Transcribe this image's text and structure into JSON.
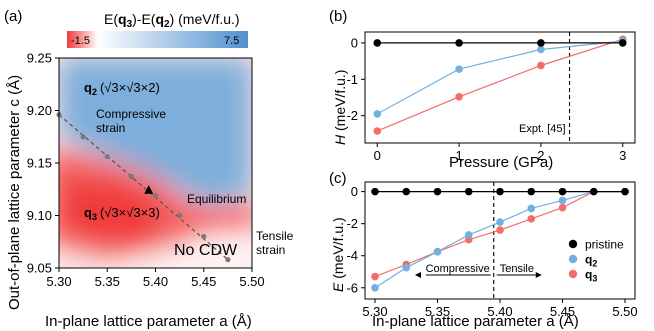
{
  "chart_data": [
    {
      "panel": "(a)",
      "type": "heatmap",
      "xlabel": "In-plane lattice parameter a (Å)",
      "ylabel": "Out-of-plane lattice parameter c (Å)",
      "xlim": [
        5.3,
        5.5
      ],
      "ylim": [
        9.05,
        9.25
      ],
      "xticks": [
        "5.30",
        "5.35",
        "5.40",
        "5.45",
        "5.50"
      ],
      "yticks": [
        "9.05",
        "9.10",
        "9.15",
        "9.20",
        "9.25"
      ],
      "colorbar": {
        "label_prefix": "E(",
        "label_q3": "q",
        "label_q3_sub": "3",
        "label_mid": ")-E(",
        "label_q2": "q",
        "label_q2_sub": "2",
        "label_suffix": ") (meV/f.u.)",
        "min_label": "-1.5",
        "max_label": "7.5",
        "min": -1.5,
        "max": 7.5,
        "colors": [
          "#f03a3a",
          "#ffffff",
          "#4f90cf"
        ]
      },
      "strain_path": {
        "a": [
          5.3,
          5.325,
          5.35,
          5.375,
          5.4,
          5.425,
          5.45,
          5.475
        ],
        "c": [
          9.196,
          9.175,
          9.156,
          9.137,
          9.119,
          9.1,
          9.08,
          9.058
        ]
      },
      "equilibrium": {
        "a": 5.393,
        "c": 9.124
      },
      "annotations": {
        "q2_bold": "q",
        "q2_sub": "2",
        "q2_cell": "(√3×√3×2)",
        "q3_bold": "q",
        "q3_sub": "3",
        "q3_cell": "(√3×√3×3)",
        "compressive_1": "Compressive",
        "compressive_2": "strain",
        "equilibrium": "Equilibrium",
        "tensile_1": "Tensile",
        "tensile_2": "strain",
        "no_cdw": "No CDW"
      }
    },
    {
      "panel": "(b)",
      "type": "line",
      "xlabel": "Pressure (GPa)",
      "ylabel_italic": "H",
      "ylabel_rest": " (meV/f.u.)",
      "xlim": [
        -0.15,
        3.15
      ],
      "ylim": [
        -2.75,
        0.3
      ],
      "xticks": [
        "0",
        "1",
        "2",
        "3"
      ],
      "yticks": [
        "0",
        "-1",
        "-2"
      ],
      "x": [
        0,
        1,
        2,
        3
      ],
      "series": [
        {
          "key": "pristine",
          "color": "#000000",
          "values": [
            0,
            0,
            0,
            0
          ]
        },
        {
          "key": "q2",
          "color": "#72b0e0",
          "values": [
            -1.95,
            -0.72,
            -0.18,
            0.05
          ]
        },
        {
          "key": "q3",
          "color": "#f46b6b",
          "values": [
            -2.42,
            -1.48,
            -0.62,
            0.1
          ]
        }
      ],
      "vline_x": 2.35,
      "vline_label": "Expt. [45]"
    },
    {
      "panel": "(c)",
      "type": "line",
      "xlabel": "In-plane lattice parameter a (Å)",
      "ylabel_italic": "E",
      "ylabel_rest": " (meV/f.u.)",
      "xlim": [
        5.292,
        5.508
      ],
      "ylim": [
        -6.7,
        0.6
      ],
      "xticks": [
        "5.30",
        "5.35",
        "5.40",
        "5.45",
        "5.50"
      ],
      "yticks": [
        "0",
        "-2",
        "-4",
        "-6"
      ],
      "x": [
        5.3,
        5.325,
        5.35,
        5.375,
        5.4,
        5.425,
        5.45,
        5.475,
        5.5
      ],
      "series": [
        {
          "key": "pristine",
          "name": "pristine",
          "color": "#000000",
          "values": [
            0,
            0,
            0,
            0,
            0,
            0,
            0,
            0,
            0
          ]
        },
        {
          "key": "q2",
          "name": "q",
          "sub": "2",
          "color": "#72b0e0",
          "values": [
            -6.0,
            -4.75,
            -3.75,
            -2.7,
            -1.9,
            -1.05,
            -0.55,
            0,
            0
          ]
        },
        {
          "key": "q3",
          "name": "q",
          "sub": "3",
          "color": "#f46b6b",
          "values": [
            -5.3,
            -4.55,
            -3.75,
            -3.0,
            -2.4,
            -1.7,
            -1.0,
            0,
            0
          ]
        }
      ],
      "vline_x": 5.395,
      "compressive_label": "Compressive",
      "tensile_label": "Tensile"
    }
  ]
}
